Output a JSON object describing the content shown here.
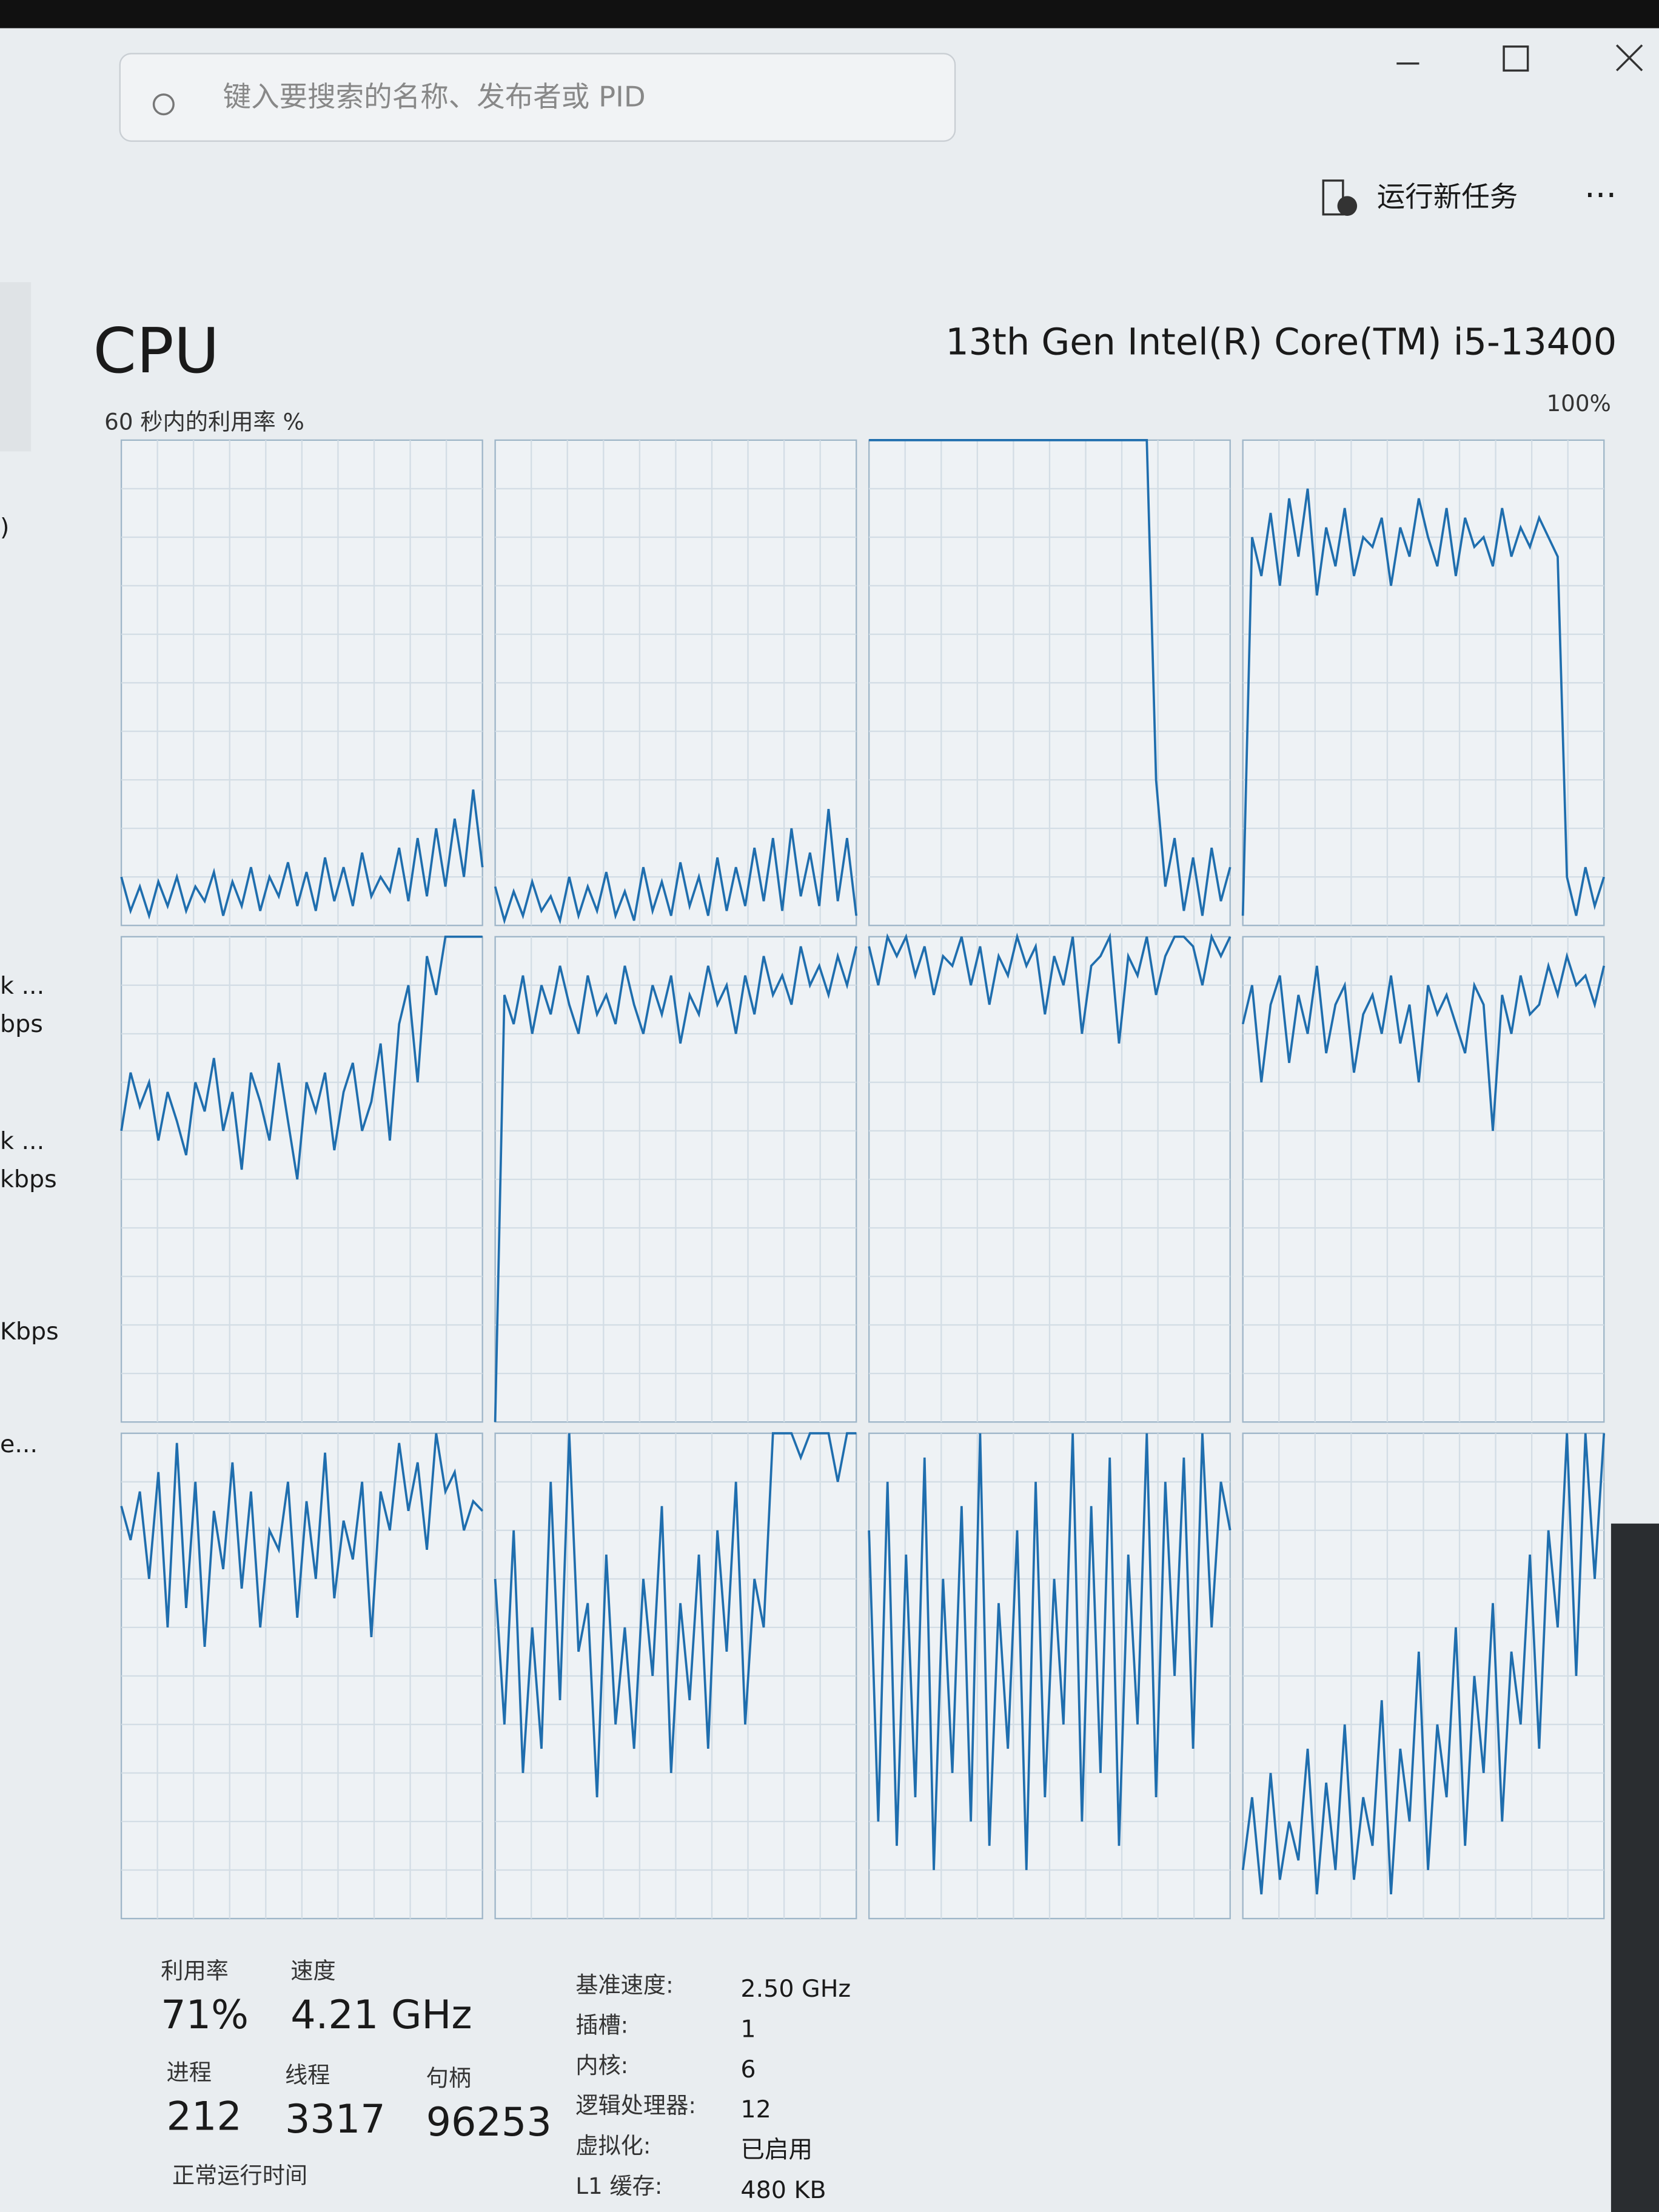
{
  "search": {
    "placeholder": "键入要搜索的名称、发布者或 PID"
  },
  "toolbar": {
    "run_new_task": "运行新任务"
  },
  "sidebar": [
    ")",
    "k ...",
    "bps",
    "k ...",
    "kbps",
    "Kbps",
    "e..."
  ],
  "header": {
    "title": "CPU",
    "cpu_name": "13th Gen Intel(R) Core(TM) i5-13400",
    "graph_label": "60 秒内的利用率 %",
    "max_label": "100%"
  },
  "cpu_graphs": [
    {
      "values": [
        10,
        3,
        8,
        2,
        9,
        4,
        10,
        3,
        8,
        5,
        11,
        2,
        9,
        4,
        12,
        3,
        10,
        6,
        13,
        4,
        11,
        3,
        14,
        5,
        12,
        4,
        15,
        6,
        10,
        7,
        16,
        5,
        18,
        6,
        20,
        8,
        22,
        10,
        28,
        12
      ]
    },
    {
      "values": [
        8,
        1,
        7,
        2,
        9,
        3,
        6,
        1,
        10,
        2,
        8,
        3,
        11,
        2,
        7,
        1,
        12,
        3,
        9,
        2,
        13,
        4,
        10,
        2,
        14,
        3,
        12,
        4,
        16,
        5,
        18,
        3,
        20,
        6,
        15,
        4,
        24,
        5,
        18,
        2
      ]
    },
    {
      "values": [
        100,
        100,
        100,
        100,
        100,
        100,
        100,
        100,
        100,
        100,
        100,
        100,
        100,
        100,
        100,
        100,
        100,
        100,
        100,
        100,
        100,
        100,
        100,
        100,
        100,
        100,
        100,
        100,
        100,
        100,
        100,
        30,
        8,
        18,
        3,
        14,
        2,
        16,
        5,
        12
      ]
    },
    {
      "values": [
        2,
        80,
        72,
        85,
        70,
        88,
        76,
        90,
        68,
        82,
        74,
        86,
        72,
        80,
        78,
        84,
        70,
        82,
        76,
        88,
        80,
        74,
        86,
        72,
        84,
        78,
        80,
        74,
        86,
        76,
        82,
        78,
        84,
        80,
        76,
        10,
        2,
        12,
        4,
        10
      ]
    },
    {
      "values": [
        60,
        72,
        65,
        70,
        58,
        68,
        62,
        55,
        70,
        64,
        75,
        60,
        68,
        52,
        72,
        66,
        58,
        74,
        62,
        50,
        70,
        64,
        72,
        56,
        68,
        74,
        60,
        66,
        78,
        58,
        82,
        90,
        70,
        96,
        88,
        100,
        100,
        100,
        100,
        100
      ]
    },
    {
      "values": [
        0,
        88,
        82,
        92,
        80,
        90,
        84,
        94,
        86,
        80,
        92,
        84,
        88,
        82,
        94,
        86,
        80,
        90,
        84,
        92,
        78,
        88,
        84,
        94,
        86,
        90,
        80,
        92,
        84,
        96,
        88,
        92,
        86,
        98,
        90,
        94,
        88,
        96,
        90,
        98
      ]
    },
    {
      "values": [
        98,
        90,
        100,
        96,
        100,
        92,
        98,
        88,
        96,
        94,
        100,
        90,
        98,
        86,
        96,
        92,
        100,
        94,
        98,
        84,
        96,
        90,
        100,
        80,
        94,
        96,
        100,
        78,
        96,
        92,
        100,
        88,
        96,
        100,
        100,
        98,
        90,
        100,
        96,
        100
      ]
    },
    {
      "values": [
        82,
        90,
        70,
        86,
        92,
        74,
        88,
        80,
        94,
        76,
        86,
        90,
        72,
        84,
        88,
        80,
        92,
        78,
        86,
        70,
        90,
        84,
        88,
        82,
        76,
        90,
        86,
        60,
        88,
        80,
        92,
        84,
        86,
        94,
        88,
        96,
        90,
        92,
        86,
        94
      ]
    },
    {
      "values": [
        85,
        78,
        88,
        70,
        92,
        60,
        98,
        64,
        90,
        56,
        84,
        72,
        94,
        68,
        88,
        60,
        80,
        76,
        90,
        62,
        86,
        70,
        96,
        66,
        82,
        74,
        90,
        58,
        88,
        80,
        98,
        84,
        94,
        76,
        100,
        88,
        92,
        80,
        86,
        84
      ]
    },
    {
      "values": [
        70,
        40,
        80,
        30,
        60,
        35,
        90,
        45,
        100,
        55,
        65,
        25,
        75,
        40,
        60,
        35,
        70,
        50,
        85,
        30,
        65,
        45,
        75,
        35,
        80,
        55,
        90,
        40,
        70,
        60,
        100,
        100,
        100,
        95,
        100,
        100,
        100,
        90,
        100,
        100
      ]
    },
    {
      "values": [
        80,
        20,
        90,
        15,
        75,
        25,
        95,
        10,
        70,
        30,
        85,
        20,
        100,
        15,
        65,
        35,
        80,
        10,
        90,
        25,
        70,
        40,
        100,
        20,
        85,
        30,
        95,
        15,
        75,
        40,
        100,
        25,
        90,
        50,
        95,
        35,
        100,
        60,
        90,
        80
      ]
    },
    {
      "values": [
        10,
        25,
        5,
        30,
        8,
        20,
        12,
        35,
        5,
        28,
        10,
        40,
        8,
        25,
        15,
        45,
        5,
        35,
        20,
        55,
        10,
        40,
        25,
        60,
        15,
        50,
        30,
        65,
        20,
        55,
        40,
        75,
        35,
        80,
        60,
        100,
        50,
        100,
        70,
        100
      ]
    }
  ],
  "stats": {
    "utilization": {
      "label": "利用率",
      "value": "71%"
    },
    "speed": {
      "label": "速度",
      "value": "4.21 GHz"
    },
    "processes": {
      "label": "进程",
      "value": "212"
    },
    "threads": {
      "label": "线程",
      "value": "3317"
    },
    "handles": {
      "label": "句柄",
      "value": "96253"
    },
    "uptime": {
      "label": "正常运行时间"
    }
  },
  "details": [
    {
      "label": "基准速度:",
      "value": "2.50 GHz"
    },
    {
      "label": "插槽:",
      "value": "1"
    },
    {
      "label": "内核:",
      "value": "6"
    },
    {
      "label": "逻辑处理器:",
      "value": "12"
    },
    {
      "label": "虚拟化:",
      "value": "已启用"
    },
    {
      "label": "L1 缓存:",
      "value": "480 KB"
    }
  ]
}
